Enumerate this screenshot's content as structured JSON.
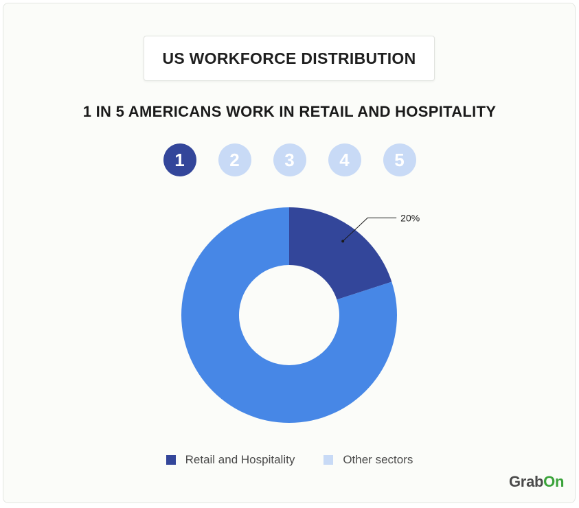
{
  "header": {
    "title": "US WORKFORCE DISTRIBUTION",
    "subtitle": "1 IN 5 AMERICANS WORK IN RETAIL AND HOSPITALITY"
  },
  "steps": {
    "items": [
      "1",
      "2",
      "3",
      "4",
      "5"
    ],
    "active_index": 0,
    "active_color": "#33469a",
    "inactive_color": "#c8daf6"
  },
  "chart_data": {
    "type": "pie",
    "donut": true,
    "slices": [
      {
        "label": "Retail and Hospitality",
        "value": 20,
        "color": "#33469a",
        "data_label": "20%"
      },
      {
        "label": "Other sectors",
        "value": 80,
        "color": "#4787e6",
        "data_label": ""
      }
    ],
    "legend": [
      {
        "label": "Retail and Hospitality",
        "color": "#33469a"
      },
      {
        "label": "Other sectors",
        "color": "#c8daf6"
      }
    ],
    "legend_position": "bottom"
  },
  "brand": {
    "logo_main": "Grab",
    "logo_accent": "On",
    "accent_color": "#3aa33a"
  }
}
